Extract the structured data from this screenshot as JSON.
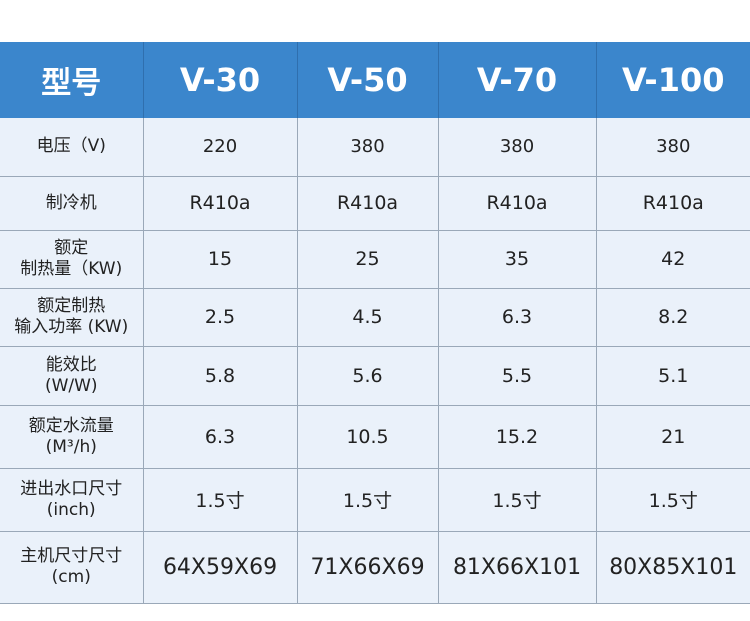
{
  "header": {
    "label": "型号",
    "models": [
      "V-30",
      "V-50",
      "V-70",
      "V-100"
    ]
  },
  "rows": [
    {
      "label": [
        "电压（V)"
      ],
      "values": [
        "220",
        "380",
        "380",
        "380"
      ]
    },
    {
      "label": [
        "制冷机"
      ],
      "values": [
        "R410a",
        "R410a",
        "R410a",
        "R410a"
      ]
    },
    {
      "label": [
        "额定",
        "制热量（KW)"
      ],
      "values": [
        "15",
        "25",
        "35",
        "42"
      ]
    },
    {
      "label": [
        "额定制热",
        "输入功率 (KW)"
      ],
      "values": [
        "2.5",
        "4.5",
        "6.3",
        "8.2"
      ]
    },
    {
      "label": [
        "能效比",
        "(W/W)"
      ],
      "values": [
        "5.8",
        "5.6",
        "5.5",
        "5.1"
      ]
    },
    {
      "label": [
        "额定水流量",
        "(M³/h)"
      ],
      "values": [
        "6.3",
        "10.5",
        "15.2",
        "21"
      ]
    },
    {
      "label": [
        "进出水口尺寸",
        "(inch)"
      ],
      "values": [
        "1.5寸",
        "1.5寸",
        "1.5寸",
        "1.5寸"
      ]
    },
    {
      "label": [
        "主机尺寸尺寸",
        "(cm)"
      ],
      "values": [
        "64X59X69",
        "71X66X69",
        "81X66X101",
        "80X85X101"
      ]
    }
  ],
  "colors": {
    "header_bg": "#3b86cc",
    "header_text": "#ffffff",
    "body_bg": "#eaf1fa",
    "grid": "#9aa8b8"
  }
}
